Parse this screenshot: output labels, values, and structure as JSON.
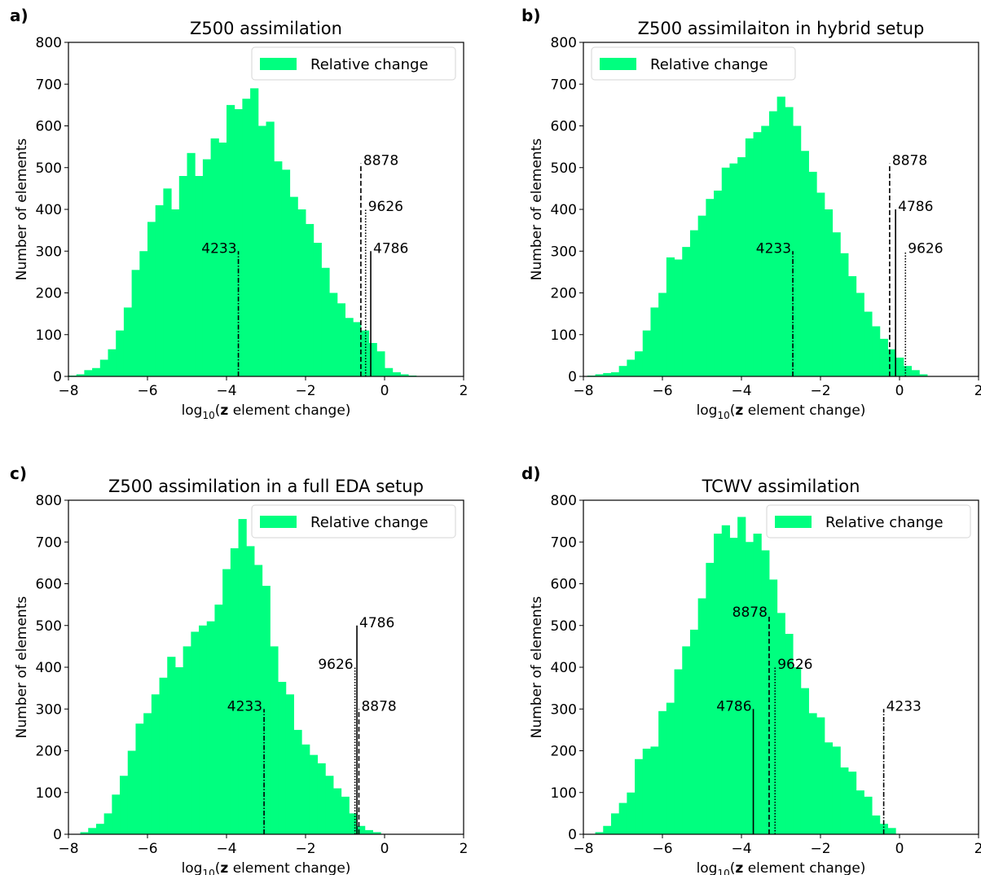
{
  "figure": {
    "bar_color": "#00ff7f",
    "line_color": "#000000"
  },
  "chart_data": [
    {
      "panel": "a)",
      "type": "bar",
      "title": "Z500 assimilation",
      "xlabel_parts": [
        "log",
        "10",
        "(",
        "z",
        " element change)"
      ],
      "ylabel": "Number of elements",
      "xlim": [
        -8,
        2
      ],
      "ylim": [
        0,
        800
      ],
      "xticks": [
        -8,
        -6,
        -4,
        -2,
        0,
        2
      ],
      "yticks": [
        0,
        100,
        200,
        300,
        400,
        500,
        600,
        700,
        800
      ],
      "grid": false,
      "legend": {
        "label": "Relative change",
        "placement": "top-right"
      },
      "bin_start": -8.0,
      "bin_width": 0.2,
      "values": [
        2,
        5,
        15,
        20,
        40,
        65,
        110,
        165,
        255,
        300,
        370,
        410,
        450,
        400,
        480,
        535,
        480,
        520,
        570,
        560,
        650,
        640,
        665,
        690,
        600,
        610,
        515,
        495,
        430,
        400,
        365,
        320,
        260,
        200,
        175,
        140,
        130,
        110,
        80,
        60,
        20,
        10,
        5,
        2
      ],
      "markers": [
        {
          "label": "4233",
          "x": -3.7,
          "height": 300,
          "style": "dashdot",
          "label_side": "left"
        },
        {
          "label": "8878",
          "x": -0.6,
          "height": 510,
          "style": "dashed",
          "label_side": "right"
        },
        {
          "label": "9626",
          "x": -0.48,
          "height": 400,
          "style": "dotted",
          "label_side": "right"
        },
        {
          "label": "4786",
          "x": -0.35,
          "height": 300,
          "style": "solid",
          "label_side": "right"
        }
      ]
    },
    {
      "panel": "b)",
      "type": "bar",
      "title": "Z500 assimilaiton in hybrid setup",
      "xlabel_parts": [
        "log",
        "10",
        "(",
        "z",
        " element change)"
      ],
      "ylabel": "Number of elements",
      "xlim": [
        -8,
        2
      ],
      "ylim": [
        0,
        800
      ],
      "xticks": [
        -8,
        -6,
        -4,
        -2,
        0,
        2
      ],
      "yticks": [
        0,
        100,
        200,
        300,
        400,
        500,
        600,
        700,
        800
      ],
      "grid": false,
      "legend": {
        "label": "Relative change",
        "placement": "top-left"
      },
      "bin_start": -7.9,
      "bin_width": 0.2,
      "values": [
        2,
        5,
        8,
        10,
        25,
        40,
        60,
        110,
        165,
        200,
        285,
        280,
        310,
        350,
        385,
        425,
        445,
        500,
        510,
        525,
        570,
        585,
        600,
        635,
        670,
        645,
        600,
        540,
        490,
        440,
        400,
        345,
        295,
        240,
        200,
        155,
        120,
        90,
        65,
        45,
        25,
        15,
        5
      ],
      "markers": [
        {
          "label": "4233",
          "x": -2.7,
          "height": 300,
          "style": "dashdot",
          "label_side": "left"
        },
        {
          "label": "8878",
          "x": -0.25,
          "height": 510,
          "style": "dashed",
          "label_side": "right"
        },
        {
          "label": "4786",
          "x": -0.1,
          "height": 400,
          "style": "solid",
          "label_side": "right"
        },
        {
          "label": "9626",
          "x": 0.15,
          "height": 300,
          "style": "dotted",
          "label_side": "right"
        }
      ]
    },
    {
      "panel": "c)",
      "type": "bar",
      "title": "Z500 assimilation in a full EDA setup",
      "xlabel_parts": [
        "log",
        "10",
        "(",
        "z",
        " element change)"
      ],
      "ylabel": "Number of elements",
      "xlim": [
        -8,
        2
      ],
      "ylim": [
        0,
        800
      ],
      "xticks": [
        -8,
        -6,
        -4,
        -2,
        0,
        2
      ],
      "yticks": [
        0,
        100,
        200,
        300,
        400,
        500,
        600,
        700,
        800
      ],
      "grid": false,
      "legend": {
        "label": "Relative change",
        "placement": "top-right"
      },
      "bin_start": -7.7,
      "bin_width": 0.2,
      "values": [
        5,
        15,
        25,
        50,
        95,
        140,
        200,
        265,
        290,
        335,
        375,
        425,
        400,
        450,
        485,
        500,
        510,
        550,
        635,
        685,
        755,
        690,
        645,
        595,
        450,
        365,
        335,
        250,
        215,
        190,
        170,
        140,
        110,
        90,
        50,
        20,
        10,
        5
      ],
      "markers": [
        {
          "label": "4233",
          "x": -3.05,
          "height": 300,
          "style": "dashdot",
          "label_side": "left"
        },
        {
          "label": "9626",
          "x": -0.75,
          "height": 400,
          "style": "dotted",
          "label_side": "left"
        },
        {
          "label": "4786",
          "x": -0.7,
          "height": 500,
          "style": "solid",
          "label_side": "right"
        },
        {
          "label": "8878",
          "x": -0.65,
          "height": 300,
          "style": "dashed",
          "label_side": "right"
        }
      ]
    },
    {
      "panel": "d)",
      "type": "bar",
      "title": "TCWV assimilation",
      "xlabel_parts": [
        "log",
        "10",
        "(",
        "z",
        " element change)"
      ],
      "ylabel": "Number of elements",
      "xlim": [
        -8,
        2
      ],
      "ylim": [
        0,
        800
      ],
      "xticks": [
        -8,
        -6,
        -4,
        -2,
        0,
        2
      ],
      "yticks": [
        0,
        100,
        200,
        300,
        400,
        500,
        600,
        700,
        800
      ],
      "grid": false,
      "legend": {
        "label": "Relative change",
        "placement": "top-right"
      },
      "bin_start": -7.7,
      "bin_width": 0.2,
      "values": [
        5,
        20,
        50,
        75,
        100,
        180,
        205,
        210,
        295,
        315,
        395,
        450,
        490,
        565,
        650,
        720,
        740,
        710,
        760,
        700,
        720,
        680,
        610,
        530,
        480,
        400,
        350,
        290,
        280,
        220,
        210,
        160,
        150,
        105,
        90,
        45,
        25,
        15
      ],
      "markers": [
        {
          "label": "4786",
          "x": -3.7,
          "height": 300,
          "style": "solid",
          "label_side": "left"
        },
        {
          "label": "8878",
          "x": -3.3,
          "height": 525,
          "style": "dashed",
          "label_side": "left"
        },
        {
          "label": "9626",
          "x": -3.15,
          "height": 400,
          "style": "dotted",
          "label_side": "right"
        },
        {
          "label": "4233",
          "x": -0.4,
          "height": 300,
          "style": "dashdot",
          "label_side": "right"
        }
      ]
    }
  ]
}
